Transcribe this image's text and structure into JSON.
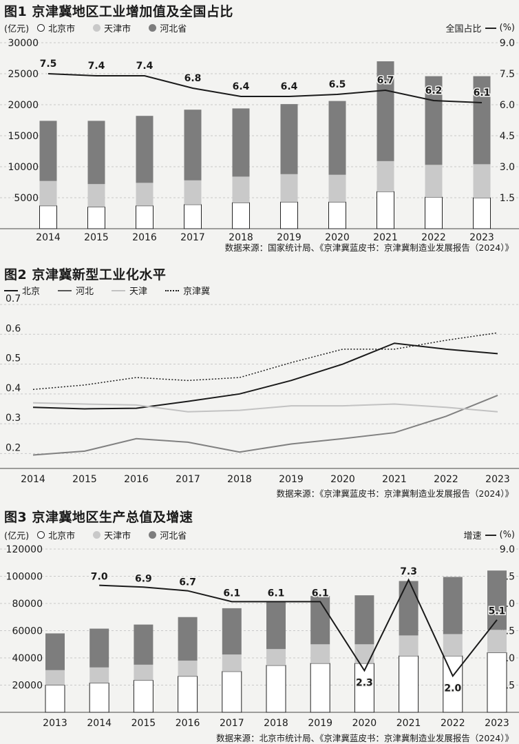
{
  "chart_data": [
    {
      "type": "bar",
      "stacked": true,
      "title": "图1 京津冀地区工业增加值及全国占比",
      "left_unit": "(亿元)",
      "right_unit_label": "全国占比",
      "right_unit": "(%)",
      "categories": [
        "2014",
        "2015",
        "2016",
        "2017",
        "2018",
        "2019",
        "2020",
        "2021",
        "2022",
        "2023"
      ],
      "series": [
        {
          "name": "北京市",
          "color": "#ffffff",
          "values": [
            3700,
            3500,
            3700,
            3900,
            4200,
            4300,
            4300,
            6000,
            5100,
            5000
          ]
        },
        {
          "name": "天津市",
          "color": "#c9c9c9",
          "values": [
            4000,
            3700,
            3700,
            3900,
            4200,
            4500,
            4400,
            4900,
            5200,
            5400
          ]
        },
        {
          "name": "河北省",
          "color": "#7d7d7d",
          "values": [
            9700,
            10200,
            10800,
            11400,
            11000,
            11300,
            11900,
            16100,
            14300,
            14200
          ]
        }
      ],
      "line": {
        "name": "全国占比",
        "values": [
          7.5,
          7.4,
          7.4,
          6.8,
          6.4,
          6.4,
          6.5,
          6.7,
          6.2,
          6.1
        ]
      },
      "left_ticks": [
        5000,
        10000,
        15000,
        20000,
        25000,
        30000
      ],
      "ylim": [
        0,
        30000
      ],
      "right_ticks": [
        "1.5",
        "3.0",
        "4.5",
        "6.0",
        "7.5",
        "9.0"
      ],
      "y2lim": [
        0,
        9
      ],
      "source": "数据来源：国家统计局、《京津冀蓝皮书：京津冀制造业发展报告（2024）》"
    },
    {
      "type": "line",
      "title": "图2 京津冀新型工业化水平",
      "categories": [
        "2014",
        "2015",
        "2016",
        "2017",
        "2018",
        "2019",
        "2020",
        "2021",
        "2022",
        "2023"
      ],
      "series": [
        {
          "name": "北京",
          "values": [
            0.355,
            0.35,
            0.352,
            0.375,
            0.4,
            0.445,
            0.5,
            0.57,
            0.55,
            0.535
          ],
          "color": "#1a1a1a",
          "width": 2,
          "dash": ""
        },
        {
          "name": "河北",
          "values": [
            0.195,
            0.208,
            0.25,
            0.238,
            0.205,
            0.232,
            0.25,
            0.27,
            0.325,
            0.395
          ],
          "color": "#808080",
          "width": 2,
          "dash": ""
        },
        {
          "name": "天津",
          "values": [
            0.37,
            0.366,
            0.363,
            0.34,
            0.345,
            0.36,
            0.36,
            0.366,
            0.355,
            0.34
          ],
          "color": "#c2c2c2",
          "width": 2,
          "dash": ""
        },
        {
          "name": "京津冀",
          "values": [
            0.415,
            0.43,
            0.455,
            0.445,
            0.455,
            0.505,
            0.55,
            0.55,
            0.58,
            0.605
          ],
          "color": "#1a1a1a",
          "width": 1.5,
          "dash": "2,2.5"
        }
      ],
      "y_ticks": [
        "0.2",
        "0.3",
        "0.4",
        "0.5",
        "0.6",
        "0.7"
      ],
      "ylim": [
        0.15,
        0.7
      ],
      "source": "数据来源：《京津冀蓝皮书：京津冀制造业发展报告（2024）》"
    },
    {
      "type": "bar",
      "stacked": true,
      "title": "图3 京津冀地区生产总值及增速",
      "left_unit": "(亿元)",
      "right_unit_label": "增速",
      "right_unit": "(%)",
      "categories": [
        "2013",
        "2014",
        "2015",
        "2016",
        "2017",
        "2018",
        "2019",
        "2020",
        "2021",
        "2022",
        "2023"
      ],
      "series": [
        {
          "name": "北京市",
          "color": "#ffffff",
          "values": [
            20000,
            21500,
            23500,
            26500,
            30000,
            34500,
            36000,
            36000,
            41500,
            41500,
            43800
          ]
        },
        {
          "name": "天津市",
          "color": "#c9c9c9",
          "values": [
            11000,
            11500,
            11500,
            11500,
            12500,
            12000,
            14000,
            14000,
            15000,
            16000,
            16800
          ]
        },
        {
          "name": "河北省",
          "color": "#7d7d7d",
          "values": [
            27000,
            28500,
            29500,
            32000,
            34000,
            35000,
            35500,
            36000,
            40000,
            42000,
            43600
          ]
        }
      ],
      "line": {
        "name": "增速",
        "values": [
          null,
          7.0,
          6.9,
          6.7,
          6.1,
          6.1,
          6.1,
          2.3,
          7.3,
          2.0,
          5.1
        ]
      },
      "left_ticks": [
        20000,
        40000,
        60000,
        80000,
        100000,
        120000
      ],
      "ylim": [
        0,
        120000
      ],
      "right_ticks": [
        "1.5",
        "3.0",
        "4.5",
        "6.0",
        "7.5",
        "9.0"
      ],
      "y2lim": [
        0,
        9
      ],
      "source": "数据来源：北京市统计局、《京津冀蓝皮书：京津冀制造业发展报告（2024）》"
    }
  ]
}
